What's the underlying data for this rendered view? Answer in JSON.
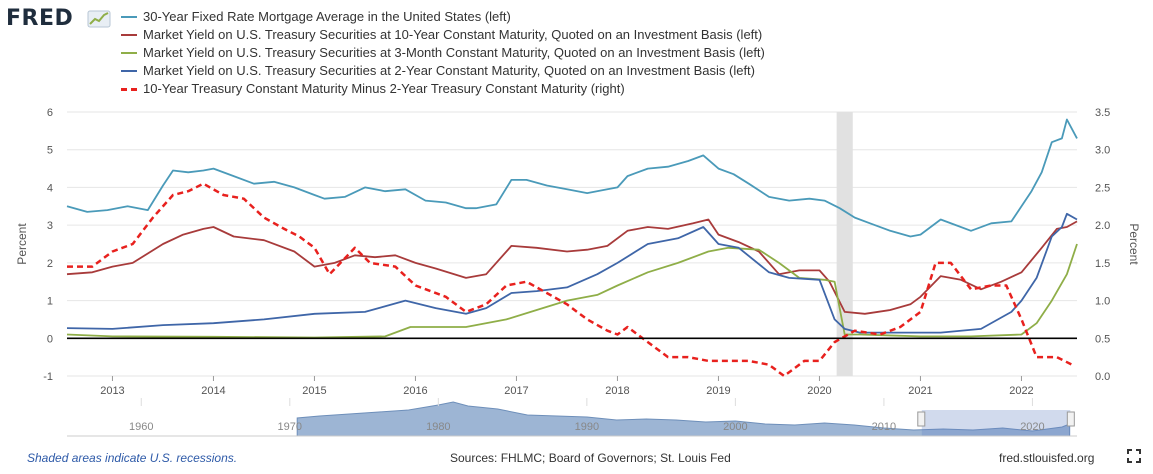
{
  "logo": {
    "text": "FRED"
  },
  "legend": [
    {
      "label": "30-Year Fixed Rate Mortgage Average in the United States (left)",
      "color": "#4a9ab9",
      "dashed": false
    },
    {
      "label": "Market Yield on U.S. Treasury Securities at 10-Year Constant Maturity, Quoted on an Investment Basis (left)",
      "color": "#a83b3b",
      "dashed": false
    },
    {
      "label": "Market Yield on U.S. Treasury Securities at 3-Month Constant Maturity, Quoted on an Investment Basis (left)",
      "color": "#8fae48",
      "dashed": false
    },
    {
      "label": "Market Yield on U.S. Treasury Securities at 2-Year Constant Maturity, Quoted on an Investment Basis (left)",
      "color": "#3f66a8",
      "dashed": false
    },
    {
      "label": "10-Year Treasury Constant Maturity Minus 2-Year Treasury Constant Maturity (right)",
      "color": "#e8211e",
      "dashed": true
    }
  ],
  "footer": {
    "recession_note": "Shaded areas indicate U.S. recessions.",
    "sources": "Sources: FHLMC; Board of Governors; St. Louis Fed",
    "site": "fred.stlouisfed.org"
  },
  "navigator": {
    "tick_labels": [
      "1960",
      "1970",
      "1980",
      "1990",
      "2000",
      "2010",
      "2020"
    ]
  },
  "chart_data": {
    "type": "line",
    "title": "",
    "xlabel": "",
    "ylabel": "Percent",
    "ylabel_right": "Percent",
    "xlim": [
      2012.55,
      2022.55
    ],
    "ylim": [
      -1,
      6
    ],
    "ylim_right": [
      0,
      3.5
    ],
    "x_ticks": [
      "2013",
      "2014",
      "2015",
      "2016",
      "2017",
      "2018",
      "2019",
      "2020",
      "2021",
      "2022"
    ],
    "y_ticks": [
      "-1",
      "0",
      "1",
      "2",
      "3",
      "4",
      "5",
      "6"
    ],
    "y_ticks_right": [
      "0.0",
      "0.5",
      "1.0",
      "1.5",
      "2.0",
      "2.5",
      "3.0",
      "3.5"
    ],
    "grid": "horizontal",
    "legend_position": "top",
    "zero_line": true,
    "recessions": [
      [
        2020.17,
        2020.33
      ]
    ],
    "series": [
      {
        "name": "30-Year Fixed Rate Mortgage Average in the United States (left)",
        "axis": "left",
        "color": "#4a9ab9",
        "x": [
          2012.55,
          2012.75,
          2012.95,
          2013.15,
          2013.35,
          2013.5,
          2013.6,
          2013.75,
          2013.9,
          2014.0,
          2014.2,
          2014.4,
          2014.6,
          2014.8,
          2015.0,
          2015.1,
          2015.3,
          2015.5,
          2015.7,
          2015.9,
          2016.1,
          2016.3,
          2016.5,
          2016.6,
          2016.8,
          2016.95,
          2017.1,
          2017.3,
          2017.5,
          2017.7,
          2017.9,
          2018.0,
          2018.1,
          2018.3,
          2018.5,
          2018.7,
          2018.85,
          2019.0,
          2019.15,
          2019.3,
          2019.5,
          2019.7,
          2019.9,
          2020.05,
          2020.2,
          2020.35,
          2020.5,
          2020.7,
          2020.9,
          2021.0,
          2021.2,
          2021.35,
          2021.5,
          2021.7,
          2021.9,
          2022.0,
          2022.1,
          2022.2,
          2022.3,
          2022.4,
          2022.45,
          2022.55
        ],
        "y": [
          3.5,
          3.35,
          3.4,
          3.5,
          3.4,
          4.05,
          4.45,
          4.4,
          4.45,
          4.5,
          4.3,
          4.1,
          4.15,
          4.0,
          3.8,
          3.7,
          3.75,
          4.0,
          3.9,
          3.95,
          3.65,
          3.6,
          3.45,
          3.45,
          3.55,
          4.2,
          4.2,
          4.05,
          3.95,
          3.85,
          3.95,
          4.0,
          4.3,
          4.5,
          4.55,
          4.7,
          4.85,
          4.5,
          4.35,
          4.1,
          3.75,
          3.65,
          3.7,
          3.65,
          3.45,
          3.2,
          3.05,
          2.85,
          2.7,
          2.75,
          3.15,
          3.0,
          2.85,
          3.05,
          3.1,
          3.5,
          3.9,
          4.4,
          5.2,
          5.3,
          5.8,
          5.3
        ]
      },
      {
        "name": "Market Yield on U.S. Treasury Securities at 10-Year Constant Maturity, Quoted on an Investment Basis (left)",
        "axis": "left",
        "color": "#a83b3b",
        "x": [
          2012.55,
          2012.8,
          2013.0,
          2013.2,
          2013.5,
          2013.7,
          2013.9,
          2014.0,
          2014.2,
          2014.5,
          2014.8,
          2015.0,
          2015.2,
          2015.4,
          2015.6,
          2015.8,
          2016.0,
          2016.2,
          2016.5,
          2016.7,
          2016.95,
          2017.2,
          2017.5,
          2017.7,
          2017.9,
          2018.1,
          2018.3,
          2018.5,
          2018.75,
          2018.9,
          2019.0,
          2019.2,
          2019.4,
          2019.6,
          2019.8,
          2020.0,
          2020.1,
          2020.25,
          2020.45,
          2020.7,
          2020.9,
          2021.0,
          2021.2,
          2021.4,
          2021.6,
          2021.8,
          2022.0,
          2022.2,
          2022.35,
          2022.45,
          2022.55
        ],
        "y": [
          1.7,
          1.75,
          1.9,
          2.0,
          2.5,
          2.75,
          2.9,
          2.95,
          2.7,
          2.6,
          2.3,
          1.9,
          2.0,
          2.2,
          2.15,
          2.2,
          2.0,
          1.85,
          1.6,
          1.7,
          2.45,
          2.4,
          2.3,
          2.35,
          2.45,
          2.85,
          2.95,
          2.9,
          3.05,
          3.15,
          2.75,
          2.55,
          2.3,
          1.7,
          1.8,
          1.8,
          1.5,
          0.7,
          0.65,
          0.75,
          0.9,
          1.1,
          1.65,
          1.55,
          1.3,
          1.5,
          1.75,
          2.4,
          2.9,
          2.95,
          3.1
        ]
      },
      {
        "name": "Market Yield on U.S. Treasury Securities at 3-Month Constant Maturity, Quoted on an Investment Basis (left)",
        "axis": "left",
        "color": "#8fae48",
        "x": [
          2012.55,
          2013.0,
          2014.0,
          2015.0,
          2015.7,
          2015.95,
          2016.2,
          2016.5,
          2016.9,
          2017.2,
          2017.5,
          2017.8,
          2018.0,
          2018.3,
          2018.6,
          2018.9,
          2019.1,
          2019.4,
          2019.6,
          2019.8,
          2020.05,
          2020.15,
          2020.25,
          2020.4,
          2021.0,
          2021.5,
          2022.0,
          2022.15,
          2022.3,
          2022.45,
          2022.55
        ],
        "y": [
          0.1,
          0.05,
          0.04,
          0.02,
          0.05,
          0.3,
          0.3,
          0.3,
          0.5,
          0.75,
          1.0,
          1.15,
          1.4,
          1.75,
          2.0,
          2.3,
          2.4,
          2.35,
          2.0,
          1.6,
          1.55,
          1.5,
          0.1,
          0.1,
          0.05,
          0.05,
          0.1,
          0.4,
          1.0,
          1.7,
          2.5
        ]
      },
      {
        "name": "Market Yield on U.S. Treasury Securities at 2-Year Constant Maturity, Quoted on an Investment Basis (left)",
        "axis": "left",
        "color": "#3f66a8",
        "x": [
          2012.55,
          2013.0,
          2013.5,
          2014.0,
          2014.5,
          2015.0,
          2015.5,
          2015.9,
          2016.2,
          2016.5,
          2016.7,
          2016.95,
          2017.2,
          2017.5,
          2017.8,
          2018.0,
          2018.3,
          2018.6,
          2018.85,
          2019.0,
          2019.2,
          2019.5,
          2019.7,
          2020.0,
          2020.15,
          2020.25,
          2020.4,
          2020.8,
          2021.2,
          2021.6,
          2021.9,
          2022.0,
          2022.15,
          2022.3,
          2022.4,
          2022.45,
          2022.55
        ],
        "y": [
          0.27,
          0.25,
          0.35,
          0.4,
          0.5,
          0.65,
          0.7,
          1.0,
          0.8,
          0.65,
          0.8,
          1.2,
          1.25,
          1.35,
          1.7,
          2.0,
          2.5,
          2.65,
          2.95,
          2.5,
          2.4,
          1.75,
          1.6,
          1.55,
          0.5,
          0.25,
          0.15,
          0.15,
          0.15,
          0.25,
          0.7,
          1.0,
          1.6,
          2.7,
          2.95,
          3.3,
          3.15
        ]
      },
      {
        "name": "10-Year Treasury Constant Maturity Minus 2-Year Treasury Constant Maturity (right)",
        "axis": "right",
        "color": "#e8211e",
        "x": [
          2012.55,
          2012.8,
          2013.0,
          2013.2,
          2013.4,
          2013.6,
          2013.75,
          2013.9,
          2014.1,
          2014.3,
          2014.5,
          2014.7,
          2014.85,
          2015.0,
          2015.15,
          2015.4,
          2015.55,
          2015.8,
          2016.0,
          2016.3,
          2016.5,
          2016.7,
          2016.9,
          2017.1,
          2017.3,
          2017.5,
          2017.7,
          2017.9,
          2018.0,
          2018.1,
          2018.3,
          2018.5,
          2018.7,
          2018.9,
          2019.1,
          2019.3,
          2019.5,
          2019.65,
          2019.85,
          2020.0,
          2020.15,
          2020.35,
          2020.6,
          2020.8,
          2021.0,
          2021.15,
          2021.3,
          2021.5,
          2021.7,
          2021.85,
          2022.0,
          2022.15,
          2022.35,
          2022.5
        ],
        "y": [
          1.45,
          1.45,
          1.65,
          1.75,
          2.1,
          2.4,
          2.45,
          2.55,
          2.4,
          2.35,
          2.1,
          1.95,
          1.85,
          1.7,
          1.35,
          1.7,
          1.5,
          1.45,
          1.2,
          1.05,
          0.85,
          0.95,
          1.2,
          1.25,
          1.1,
          0.95,
          0.75,
          0.6,
          0.55,
          0.65,
          0.45,
          0.25,
          0.25,
          0.2,
          0.2,
          0.2,
          0.15,
          0.0,
          0.2,
          0.2,
          0.45,
          0.6,
          0.55,
          0.65,
          0.85,
          1.5,
          1.5,
          1.15,
          1.2,
          1.2,
          0.75,
          0.25,
          0.25,
          0.15
        ]
      }
    ]
  }
}
